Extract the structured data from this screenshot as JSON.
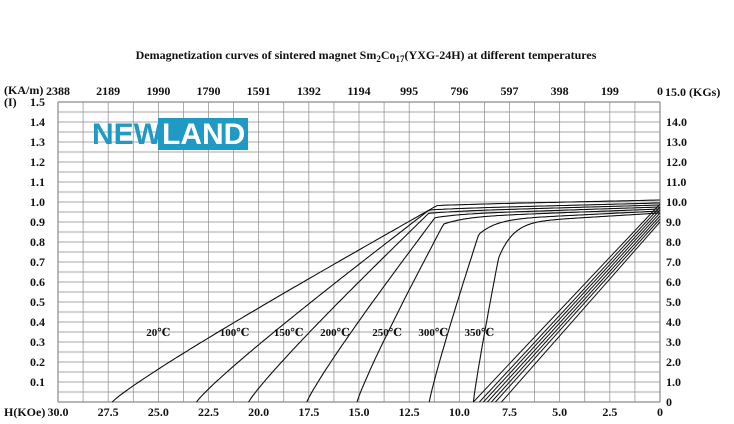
{
  "chart_data": {
    "type": "line",
    "title_prefix": "Demagnetization curves of sintered magnet Sm",
    "title_sub1": "2",
    "title_mid": "Co",
    "title_sub2": "17",
    "title_suffix": "(YXG-24H) at different temperatures",
    "logo": {
      "text_left": "NEW",
      "text_right": "LAND",
      "color": "#1f9ac4"
    },
    "left_axis_label_1": "(KA/m)",
    "left_axis_label_2": "(I)",
    "right_axis_label": "15.0 (KGs)",
    "bottom_axis_label": "H(KOe)",
    "x_ticks": [
      "30.0",
      "27.5",
      "25.0",
      "22.5",
      "20.0",
      "17.5",
      "15.0",
      "12.5",
      "10.0",
      "7.5",
      "5.0",
      "2.5",
      "0"
    ],
    "top_ticks": [
      "2388",
      "2189",
      "1990",
      "1790",
      "1591",
      "1392",
      "1194",
      "995",
      "796",
      "597",
      "398",
      "199",
      "0"
    ],
    "y_left_ticks": [
      "1.5",
      "1.4",
      "1.3",
      "1.2",
      "1.1",
      "1.0",
      "0.9",
      "0.8",
      "0.7",
      "0.6",
      "0.5",
      "0.4",
      "0.3",
      "0.2",
      "0.1"
    ],
    "y_right_ticks": [
      "14.0",
      "13.0",
      "12.0",
      "11.0",
      "10.0",
      "9.0",
      "8.0",
      "7.0",
      "6.0",
      "5.0",
      "4.0",
      "3.0",
      "2.0",
      "1.0",
      "0"
    ],
    "xlim": [
      0,
      30
    ],
    "ylim": [
      0,
      1.5
    ],
    "x_reversed": true,
    "grid": true,
    "intrinsic_series": [
      {
        "name": "20℃",
        "Hcj": 27.3,
        "Br": 1.01,
        "knee_sharpness": 0.55
      },
      {
        "name": "100℃",
        "Hcj": 23.1,
        "Br": 0.995,
        "knee_sharpness": 0.45
      },
      {
        "name": "150℃",
        "Hcj": 20.5,
        "Br": 0.985,
        "knee_sharpness": 0.38
      },
      {
        "name": "200℃",
        "Hcj": 17.6,
        "Br": 0.975,
        "knee_sharpness": 0.3
      },
      {
        "name": "250℃",
        "Hcj": 15.1,
        "Br": 0.965,
        "knee_sharpness": 0.22
      },
      {
        "name": "300℃",
        "Hcj": 11.5,
        "Br": 0.955,
        "knee_sharpness": 0.15
      },
      {
        "name": "350℃",
        "Hcj": 9.3,
        "Br": 0.945,
        "knee_sharpness": 0.08
      }
    ],
    "normal_lines": [
      {
        "x_at_zero": 9.3,
        "y_at_h0": 0.99
      },
      {
        "x_at_zero": 9.0,
        "y_at_h0": 0.975
      },
      {
        "x_at_zero": 8.8,
        "y_at_h0": 0.96
      },
      {
        "x_at_zero": 8.6,
        "y_at_h0": 0.945
      },
      {
        "x_at_zero": 8.4,
        "y_at_h0": 0.93
      },
      {
        "x_at_zero": 8.2,
        "y_at_h0": 0.915
      },
      {
        "x_at_zero": 7.9,
        "y_at_h0": 0.9
      }
    ],
    "curve_labels": [
      {
        "text": "20℃",
        "h": 25.0,
        "i": 0.33
      },
      {
        "text": "100℃",
        "h": 21.2,
        "i": 0.33
      },
      {
        "text": "150℃",
        "h": 18.5,
        "i": 0.33
      },
      {
        "text": "200℃",
        "h": 16.2,
        "i": 0.33
      },
      {
        "text": "250℃",
        "h": 13.6,
        "i": 0.33
      },
      {
        "text": "300℃",
        "h": 11.3,
        "i": 0.33
      },
      {
        "text": "350℃",
        "h": 9.0,
        "i": 0.33
      }
    ]
  }
}
